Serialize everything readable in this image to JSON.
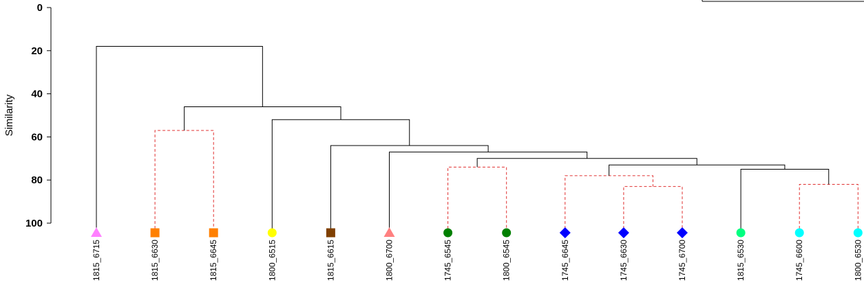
{
  "chart_data": {
    "type": "dendrogram",
    "ylabel": "Similarity",
    "ylim": [
      0,
      100
    ],
    "yticks": [
      0,
      20,
      40,
      60,
      80,
      100
    ],
    "leaves": [
      {
        "label": "1815_6715",
        "marker": "triangle",
        "color": "#ff80ff"
      },
      {
        "label": "1815_6630",
        "marker": "square",
        "color": "#ff8000"
      },
      {
        "label": "1815_6645",
        "marker": "square",
        "color": "#ff8000"
      },
      {
        "label": "1800_6515",
        "marker": "circle",
        "color": "#ffff00"
      },
      {
        "label": "1815_6615",
        "marker": "square",
        "color": "#804000"
      },
      {
        "label": "1800_6700",
        "marker": "triangle",
        "color": "#ff8080"
      },
      {
        "label": "1745_6545",
        "marker": "circle",
        "color": "#008000"
      },
      {
        "label": "1800_6545",
        "marker": "circle",
        "color": "#008000"
      },
      {
        "label": "1745_6645",
        "marker": "diamond",
        "color": "#0000ff"
      },
      {
        "label": "1745_6630",
        "marker": "diamond",
        "color": "#0000ff"
      },
      {
        "label": "1745_6700",
        "marker": "diamond",
        "color": "#0000ff"
      },
      {
        "label": "1815_6530",
        "marker": "circle",
        "color": "#00ff80"
      },
      {
        "label": "1745_6600",
        "marker": "circle",
        "color": "#00ffff"
      },
      {
        "label": "1800_6530",
        "marker": "circle",
        "color": "#00ffff"
      }
    ],
    "merges": [
      {
        "id": "m1",
        "left": 1,
        "right": 2,
        "similarity": 57,
        "style": "dashed"
      },
      {
        "id": "m2",
        "left": 6,
        "right": 7,
        "similarity": 74,
        "style": "dashed"
      },
      {
        "id": "m3",
        "left": 9,
        "right": 10,
        "similarity": 83,
        "style": "dashed"
      },
      {
        "id": "m4",
        "left": 8,
        "right": "m3",
        "similarity": 78,
        "style": "dashed"
      },
      {
        "id": "m5",
        "left": 12,
        "right": 13,
        "similarity": 82,
        "style": "dashed"
      },
      {
        "id": "m6",
        "left": 11,
        "right": "m5",
        "similarity": 75,
        "style": "solid"
      },
      {
        "id": "m7",
        "left": "m4",
        "right": "m6",
        "similarity": 73,
        "style": "solid"
      },
      {
        "id": "m8",
        "left": "m2",
        "right": "m7",
        "similarity": 70,
        "style": "solid"
      },
      {
        "id": "m9",
        "left": 5,
        "right": "m8",
        "similarity": 67,
        "style": "solid"
      },
      {
        "id": "m10",
        "left": 4,
        "right": "m9",
        "similarity": 64,
        "style": "solid"
      },
      {
        "id": "m11",
        "left": 3,
        "right": "m10",
        "similarity": 52,
        "style": "solid"
      },
      {
        "id": "m12",
        "left": "m1",
        "right": "m11",
        "similarity": 46,
        "style": "solid"
      },
      {
        "id": "m13",
        "left": 0,
        "right": "m12",
        "similarity": 18,
        "style": "solid"
      }
    ],
    "colors": {
      "tree": "#000000",
      "significant": "#e03030"
    }
  }
}
